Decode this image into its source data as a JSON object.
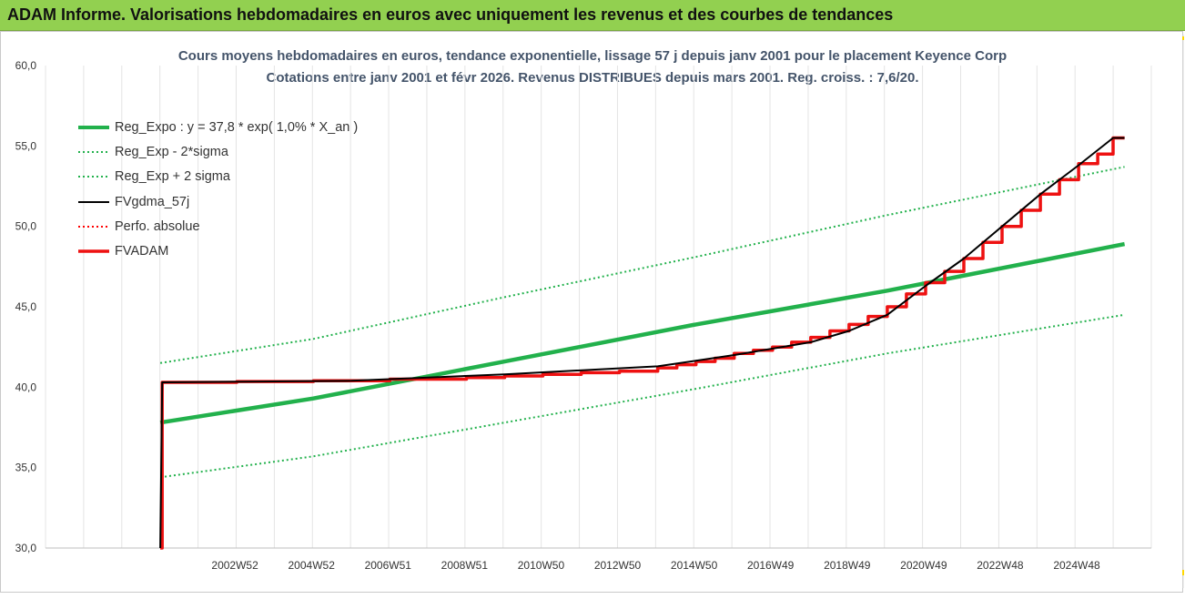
{
  "header": {
    "title": "ADAM Informe. Valorisations hebdomadaires en euros avec uniquement les revenus et des courbes de tendances"
  },
  "colors": {
    "header_bg": "#92d050",
    "reg_green": "#22b14c",
    "fvgdma": "#000000",
    "perfo": "#ff0000",
    "fvadam": "#ee1111",
    "title_blue": "#44546a"
  },
  "chart_data": {
    "type": "line",
    "title": "Cours moyens hebdomadaires en euros, tendance exponentielle, lissage 57 j depuis janv 2001 pour le placement Keyence Corp",
    "subtitle": "Cotations entre janv 2001 et févr 2026. Revenus DISTRIBUES depuis mars 2001. Reg. croiss. : 7,6/20.",
    "xlabel": "",
    "ylabel": "",
    "ylim": [
      30,
      60
    ],
    "yticks": [
      "30,0",
      "35,0",
      "40,0",
      "45,0",
      "50,0",
      "55,0",
      "60,0"
    ],
    "xlim": [
      1998.0,
      2026.9
    ],
    "xticks": [
      {
        "x": 2002.95,
        "label": "2002W52"
      },
      {
        "x": 2004.95,
        "label": "2004W52"
      },
      {
        "x": 2006.95,
        "label": "2006W51"
      },
      {
        "x": 2008.95,
        "label": "2008W51"
      },
      {
        "x": 2010.95,
        "label": "2010W50"
      },
      {
        "x": 2012.95,
        "label": "2012W50"
      },
      {
        "x": 2014.95,
        "label": "2014W50"
      },
      {
        "x": 2016.95,
        "label": "2016W49"
      },
      {
        "x": 2018.95,
        "label": "2018W49"
      },
      {
        "x": 2020.95,
        "label": "2020W49"
      },
      {
        "x": 2022.95,
        "label": "2022W48"
      },
      {
        "x": 2024.95,
        "label": "2024W48"
      }
    ],
    "grid": "vertical",
    "legend_position": "top-left",
    "series": [
      {
        "name": "Reg_Expo : y = 37,8 * exp( 1,0% *  X_an )",
        "style": "thick-solid",
        "color": "#22b14c",
        "x": [
          2001.0,
          2005.0,
          2010.0,
          2015.0,
          2020.0,
          2026.2
        ],
        "y": [
          37.8,
          39.3,
          41.6,
          43.9,
          46.0,
          48.9
        ]
      },
      {
        "name": "Reg_Exp - 2*sigma",
        "style": "dotted",
        "color": "#22b14c",
        "x": [
          2001.0,
          2005.0,
          2010.0,
          2015.0,
          2020.0,
          2026.2
        ],
        "y": [
          34.4,
          35.7,
          37.8,
          39.9,
          42.1,
          44.5
        ]
      },
      {
        "name": "Reg_Exp + 2 sigma",
        "style": "dotted",
        "color": "#22b14c",
        "x": [
          2001.0,
          2005.0,
          2010.0,
          2015.0,
          2020.0,
          2026.2
        ],
        "y": [
          41.5,
          43.0,
          45.6,
          48.1,
          50.7,
          53.7
        ]
      },
      {
        "name": "FVgdma_57j",
        "style": "solid",
        "color": "#000000",
        "x": [
          2001.0,
          2001.05,
          2006.0,
          2010.0,
          2014.0,
          2016.0,
          2018.0,
          2019.0,
          2020.0,
          2021.0,
          2022.0,
          2023.0,
          2024.0,
          2025.0,
          2025.9,
          2026.2
        ],
        "y": [
          30.0,
          40.3,
          40.4,
          40.8,
          41.3,
          42.0,
          42.8,
          43.5,
          44.5,
          46.3,
          48.0,
          50.0,
          52.0,
          53.8,
          55.5,
          55.5
        ]
      },
      {
        "name": "Perfo. absolue",
        "style": "dotted",
        "color": "#ff0000",
        "x": [],
        "y": []
      },
      {
        "name": "FVADAM",
        "style": "thick-step",
        "color": "#ee1111",
        "x": [
          2001.0,
          2001.05,
          2003.0,
          2005.0,
          2007.0,
          2009.0,
          2010.0,
          2011.0,
          2012.0,
          2013.0,
          2014.0,
          2014.5,
          2015.0,
          2015.5,
          2016.0,
          2016.5,
          2017.0,
          2017.5,
          2018.0,
          2018.5,
          2019.0,
          2019.5,
          2020.0,
          2020.5,
          2021.0,
          2021.5,
          2022.0,
          2022.5,
          2023.0,
          2023.5,
          2024.0,
          2024.5,
          2025.0,
          2025.5,
          2025.9,
          2026.2
        ],
        "y": [
          30.0,
          40.3,
          40.35,
          40.4,
          40.5,
          40.6,
          40.7,
          40.8,
          40.9,
          41.0,
          41.2,
          41.4,
          41.6,
          41.8,
          42.1,
          42.3,
          42.5,
          42.8,
          43.1,
          43.5,
          43.9,
          44.4,
          45.0,
          45.8,
          46.5,
          47.2,
          48.0,
          49.0,
          50.0,
          51.0,
          52.0,
          52.9,
          53.9,
          54.5,
          55.5,
          55.5
        ]
      }
    ]
  }
}
